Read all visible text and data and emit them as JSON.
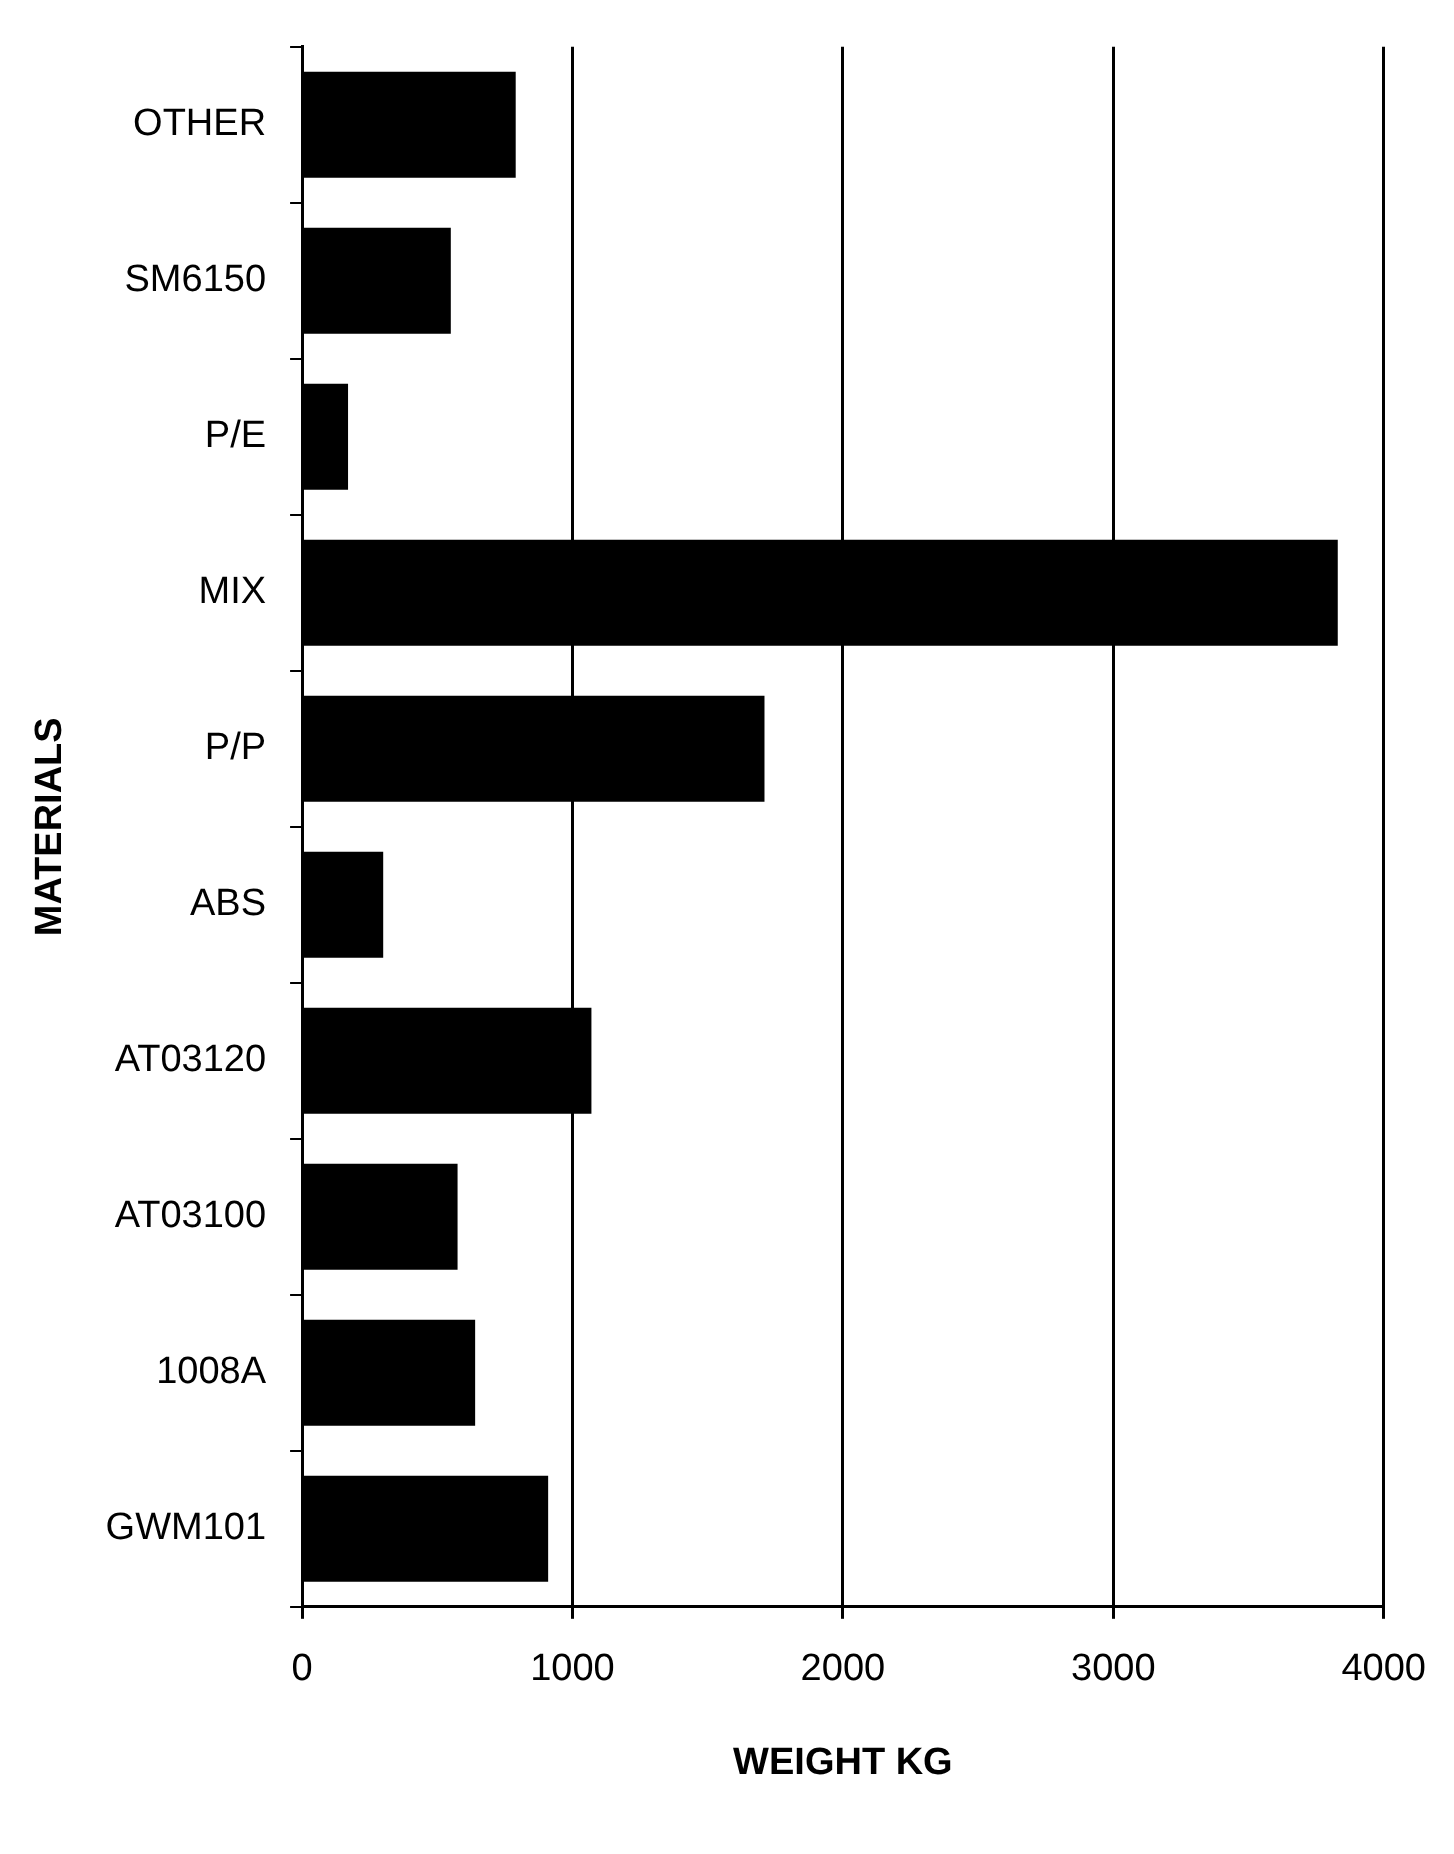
{
  "chart_data": {
    "type": "bar",
    "orientation": "horizontal",
    "xlabel": "WEIGHT KG",
    "ylabel": "MATERIALS",
    "categories": [
      "OTHER",
      "SM6150",
      "P/E",
      "MIX",
      "P/P",
      "ABS",
      "AT03120",
      "AT03100",
      "1008A",
      "GWM101"
    ],
    "values": [
      790,
      550,
      170,
      3830,
      1710,
      300,
      1070,
      575,
      640,
      910
    ],
    "color": "#000000",
    "xlim": [
      0,
      4000
    ],
    "xticks": [
      0,
      1000,
      2000,
      3000,
      4000
    ],
    "grid": "x",
    "legend": false
  }
}
